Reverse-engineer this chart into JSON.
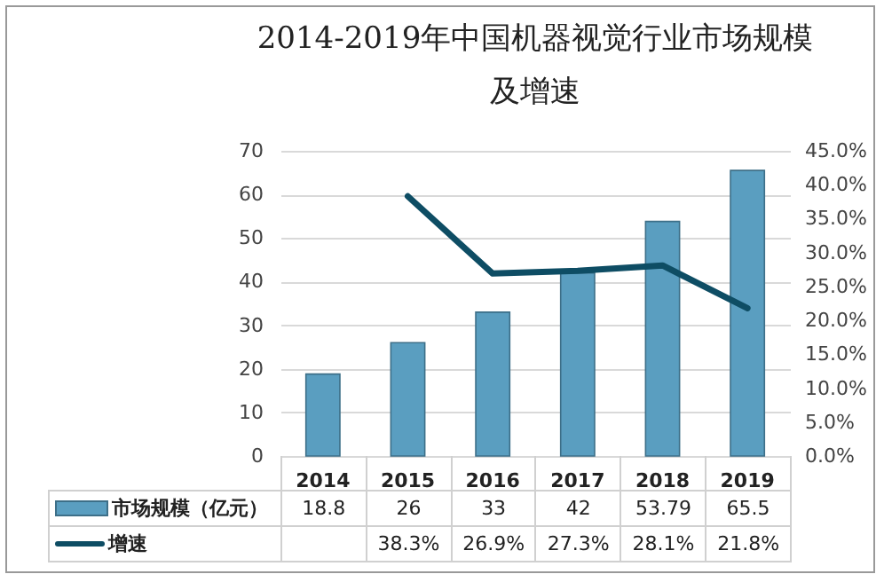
{
  "chart_data": {
    "type": "bar",
    "title": [
      "2014-2019年中国机器视觉行业市场规模",
      "及增速"
    ],
    "categories": [
      "2014",
      "2015",
      "2016",
      "2017",
      "2018",
      "2019"
    ],
    "series": [
      {
        "name": "市场规模（亿元）",
        "color": "#5a9ec0",
        "values": [
          18.8,
          26,
          33,
          42,
          53.79,
          65.5
        ],
        "value_labels": [
          "18.8",
          "26",
          "33",
          "42",
          "53.79",
          "65.5"
        ]
      },
      {
        "name": "增速",
        "type": "line",
        "axis": "y2",
        "color": "#0e4d64",
        "values": [
          null,
          38.3,
          26.9,
          27.3,
          28.1,
          21.8
        ],
        "value_labels": [
          null,
          "38.3%",
          "26.9%",
          "27.3%",
          "28.1%",
          "21.8%"
        ]
      }
    ],
    "ylim": [
      0,
      70
    ],
    "yticks": [
      0,
      10,
      20,
      30,
      40,
      50,
      60,
      70
    ],
    "y2lim": [
      0,
      45
    ],
    "y2ticks": [
      {
        "value": 0,
        "label": "0.0%"
      },
      {
        "value": 5,
        "label": "5.0%"
      },
      {
        "value": 10,
        "label": "10.0%"
      },
      {
        "value": 15,
        "label": "15.0%"
      },
      {
        "value": 20,
        "label": "20.0%"
      },
      {
        "value": 25,
        "label": "25.0%"
      },
      {
        "value": 30,
        "label": "30.0%"
      },
      {
        "value": 35,
        "label": "35.0%"
      },
      {
        "value": 40,
        "label": "40.0%"
      },
      {
        "value": 45,
        "label": "45.0%"
      }
    ],
    "grid": "y",
    "legend": "bottom"
  }
}
